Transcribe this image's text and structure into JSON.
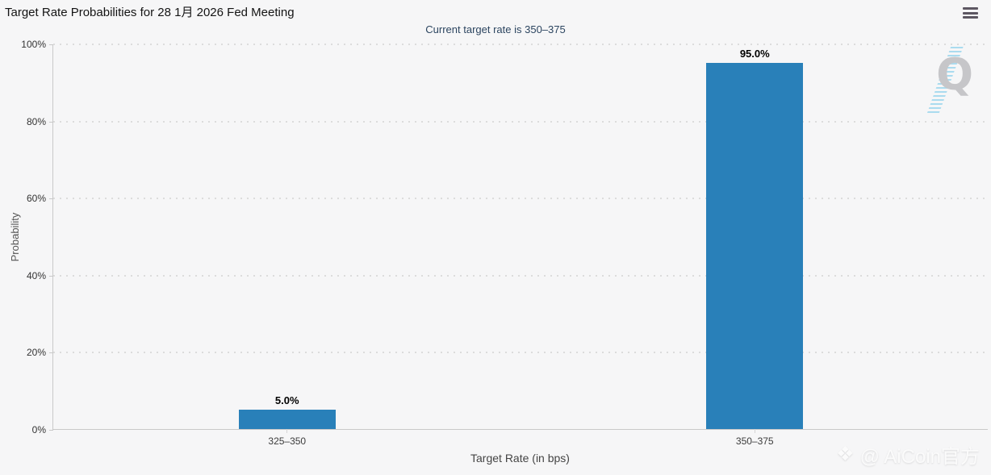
{
  "chart_data": {
    "type": "bar",
    "title": "Target Rate Probabilities for 28 1月 2026 Fed Meeting",
    "subtitle": "Current target rate is 350–375",
    "categories": [
      "325–350",
      "350–375"
    ],
    "values": [
      5.0,
      95.0
    ],
    "value_labels": [
      "5.0%",
      "95.0%"
    ],
    "xlabel": "Target Rate (in bps)",
    "ylabel": "Probability",
    "ylim": [
      0,
      100
    ],
    "ytick_step": 20,
    "ytick_labels": [
      "0%",
      "20%",
      "40%",
      "60%",
      "80%",
      "100%"
    ],
    "bar_color": "#2980b9",
    "grid": "horizontal-dotted",
    "legend": false
  },
  "menu": {
    "icon": "hamburger-menu"
  },
  "watermarks": {
    "q_letter": "Q",
    "brand_logo_icon": "aicoin-diamond",
    "brand_text": "@ AiCoin官方"
  },
  "colors": {
    "background": "#f6f6f7",
    "bar": "#2980b9",
    "subtitle_text": "#2c4560",
    "grid_dots": "#dcdcdc",
    "axis_line": "#c9c9c9"
  }
}
